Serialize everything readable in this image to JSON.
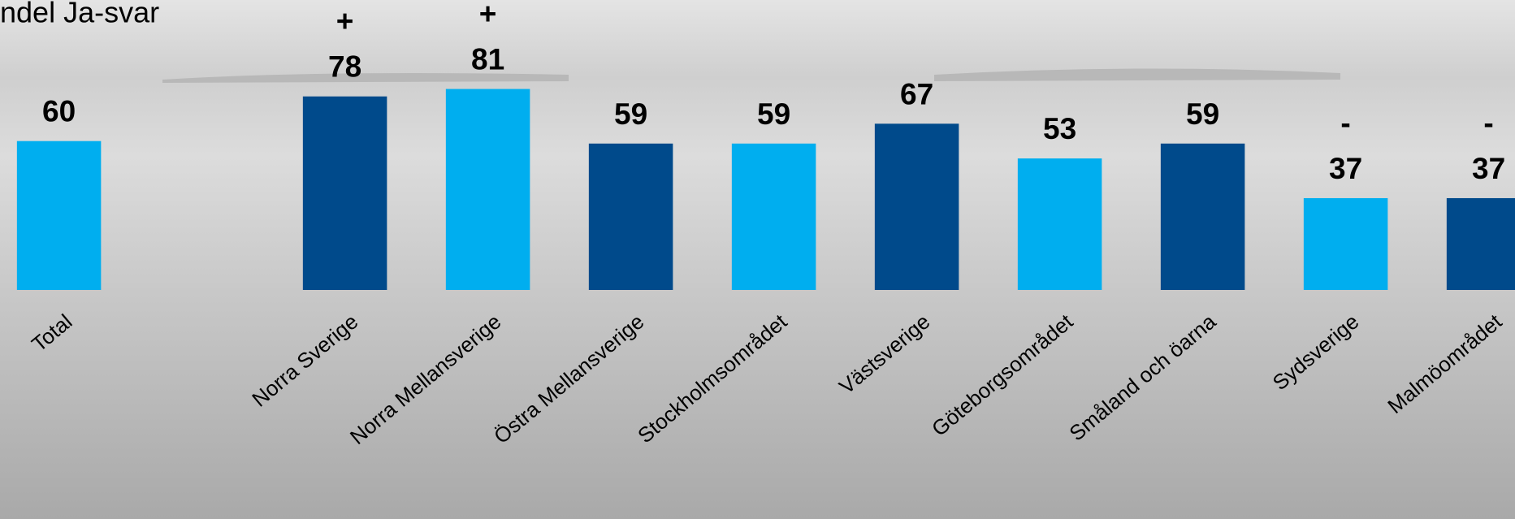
{
  "chart_data": {
    "type": "bar",
    "title": "ndel Ja-svar",
    "categories": [
      "Total",
      null,
      "Norra Sverige",
      "Norra Mellansverige",
      "Östra Mellansverige",
      "Stockholmsområdet",
      "Västsverige",
      "Göteborgsområdet",
      "Småland och öarna",
      "Sydsverige",
      "Malmöområdet"
    ],
    "values": [
      60,
      null,
      78,
      81,
      59,
      59,
      67,
      53,
      59,
      37,
      37
    ],
    "significance": [
      null,
      null,
      "+",
      "+",
      null,
      null,
      null,
      null,
      null,
      "-",
      "-"
    ],
    "colors": [
      "#00aeef",
      null,
      "#004a8b",
      "#00aeef",
      "#004a8b",
      "#00aeef",
      "#004a8b",
      "#00aeef",
      "#004a8b",
      "#00aeef",
      "#004a8b"
    ]
  }
}
